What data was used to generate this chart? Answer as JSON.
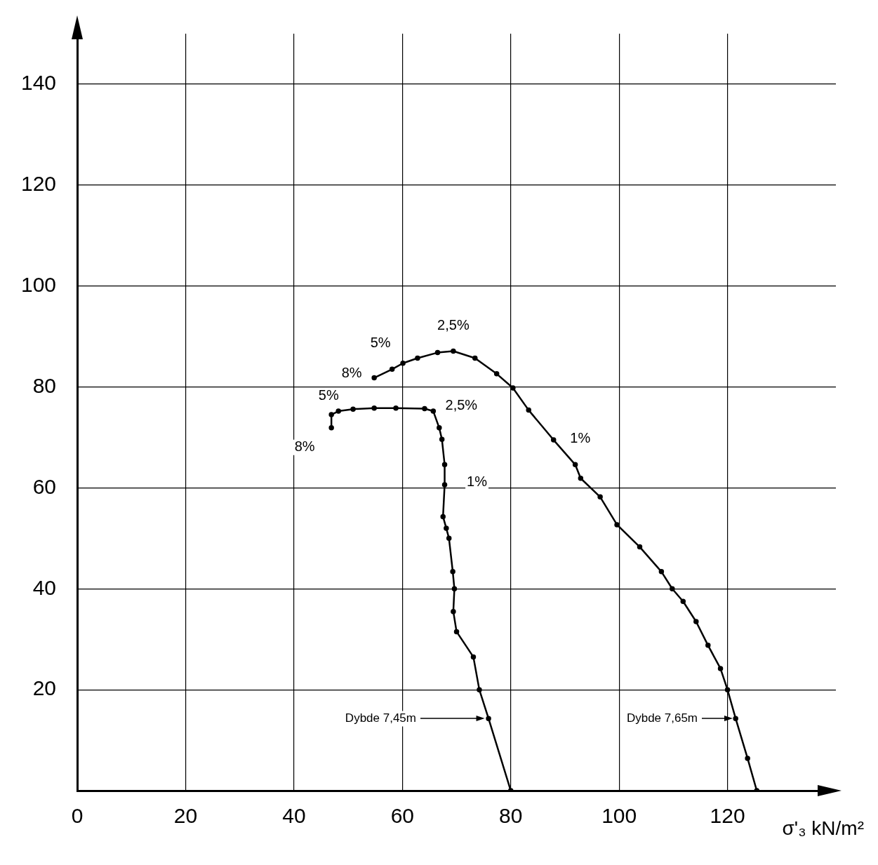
{
  "chart_data": {
    "type": "line",
    "xlabel": "σ'₃ kN/m²",
    "xlim": [
      0,
      140
    ],
    "ylim": [
      0,
      150
    ],
    "xticks": [
      0,
      20,
      40,
      60,
      80,
      100,
      120
    ],
    "yticks": [
      20,
      40,
      60,
      80,
      100,
      120,
      140
    ],
    "grid": true,
    "legend": false,
    "marker": "circle",
    "line_style": "solid",
    "series": [
      {
        "color": "#000000",
        "x": [
          80,
          75.9,
          74.2,
          73.1,
          70,
          69.4,
          69.6,
          69.3,
          68.6,
          68.1,
          67.5,
          67.8,
          67.8,
          67.3,
          66.8,
          65.7,
          64.1,
          58.8,
          54.8,
          50.9,
          48.2,
          46.9,
          46.9
        ],
        "values": [
          0,
          14.3,
          20,
          26.5,
          31.5,
          35.5,
          40,
          43.4,
          50,
          52,
          54.3,
          60.6,
          64.6,
          69.6,
          71.9,
          75.2,
          75.7,
          75.8,
          75.8,
          75.6,
          75.2,
          74.5,
          71.9
        ]
      },
      {
        "color": "#000000",
        "x": [
          125.4,
          123.7,
          121.5,
          120,
          118.7,
          116.4,
          114.2,
          111.8,
          109.8,
          107.8,
          103.8,
          99.6,
          96.5,
          92.9,
          91.9,
          87.9,
          83.3,
          80.4,
          77.4,
          73.4,
          69.4,
          66.5,
          62.8,
          60.1,
          58.1,
          54.8
        ],
        "values": [
          0,
          6.4,
          14.3,
          20,
          24.2,
          28.8,
          33.5,
          37.5,
          40,
          43.4,
          48.3,
          52.7,
          58.2,
          61.9,
          64.6,
          69.5,
          75.4,
          79.8,
          82.6,
          85.7,
          87.1,
          86.8,
          85.7,
          84.7,
          83.5,
          81.8
        ]
      }
    ],
    "annotations": [
      {
        "text": "2,5%",
        "x": 69.4,
        "y": 87.1
      },
      {
        "text": "5%",
        "x": 60.1,
        "y": 84.7
      },
      {
        "text": "8%",
        "x": 54.8,
        "y": 81.8
      },
      {
        "text": "1%",
        "x": 87.9,
        "y": 69.5
      },
      {
        "text": "5%",
        "x": 48.2,
        "y": 75.2
      },
      {
        "text": "2,5%",
        "x": 65.7,
        "y": 75.2
      },
      {
        "text": "8%",
        "x": 46.9,
        "y": 71.9
      },
      {
        "text": "1%",
        "x": 67.8,
        "y": 60.6
      },
      "Dybde 7,45m",
      "Dybde 7,65m"
    ]
  }
}
